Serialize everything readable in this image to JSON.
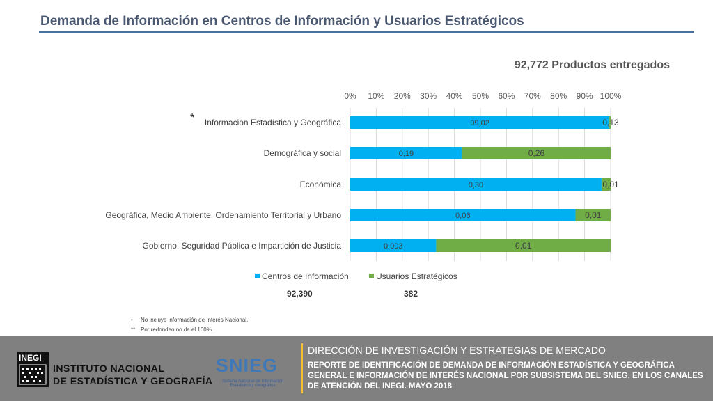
{
  "title": "Demanda de Información en Centros de Información y Usuarios Estratégicos",
  "subtitle": "92,772 Productos entregados",
  "chart_data": {
    "type": "bar",
    "orientation": "horizontal",
    "stacked": "percent",
    "x_ticks": [
      "0%",
      "10%",
      "20%",
      "30%",
      "40%",
      "50%",
      "60%",
      "70%",
      "80%",
      "90%",
      "100%"
    ],
    "xlim": [
      0,
      100
    ],
    "categories": [
      "Información Estadística y Geográfica",
      "Demográfica y social",
      "Económica",
      "Geográfica, Medio Ambiente, Ordenamiento Territorial y Urbano",
      "Gobierno, Seguridad Pública e Impartición de Justicia"
    ],
    "category_markers": [
      "*",
      "",
      "",
      "",
      ""
    ],
    "series": [
      {
        "name": "Centros de Información",
        "color": "#00b0f0",
        "values": [
          99.5,
          43,
          96.5,
          86.5,
          33
        ],
        "labels": [
          "99,02",
          "0,19",
          "0,30",
          "0,06",
          "0,003"
        ]
      },
      {
        "name": "Usuarios Estratégicos",
        "color": "#70ad47",
        "values": [
          0.5,
          57,
          3.5,
          13.5,
          67
        ],
        "labels": [
          "0,13",
          "0,26",
          "0,01",
          "0,01",
          "0,01"
        ]
      }
    ],
    "legend": "bottom",
    "totals": [
      "92,390",
      "382"
    ]
  },
  "notes": [
    {
      "marker": "•",
      "text": "No incluye información de Interés Nacional."
    },
    {
      "marker": "**",
      "text": "Por redondeo no da el 100%."
    }
  ],
  "footer": {
    "logo_text": "INEGI",
    "institute_line1": "INSTITUTO NACIONAL",
    "institute_line2": "DE ESTADÍSTICA Y GEOGRAFÍA",
    "snieg": "SNIEG",
    "snieg_sub": "Sistema Nacional de Información Estadística y Geográfica",
    "direccion": "DIRECCIÓN DE INVESTIGACIÓN Y ESTRATEGIAS DE MERCADO",
    "reporte": "REPORTE DE IDENTIFICACIÓN DE DEMANDA DE INFORMACIÓN ESTADÍSTICA Y GEOGRÁFICA GENERAL E INFORMACIÓN DE INTERÉS NACIONAL POR SUBSISTEMA DEL SNIEG, EN LOS CANALES DE ATENCIÓN DEL INEGI. MAYO 2018"
  }
}
